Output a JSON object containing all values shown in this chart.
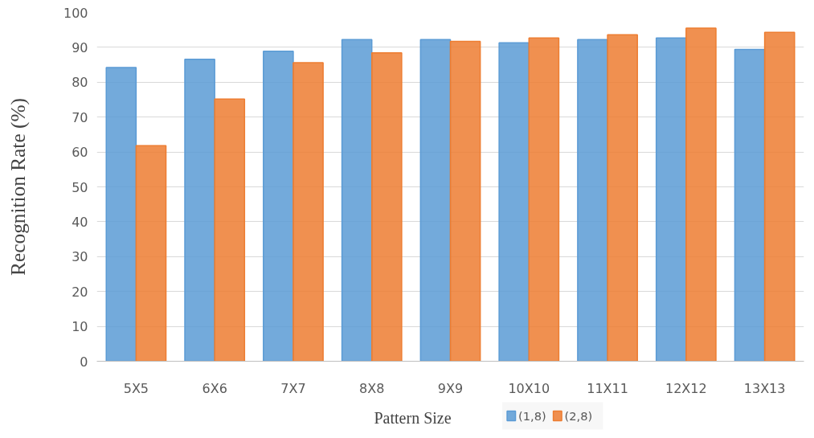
{
  "chart_data": {
    "type": "bar",
    "xlabel": "Pattern Size",
    "ylabel": "Recognition Rate (%)",
    "categories": [
      "5X5",
      "6X6",
      "7X7",
      "8X8",
      "9X9",
      "10X10",
      "11X11",
      "12X12",
      "13X13"
    ],
    "series": [
      {
        "name": "(1,8)",
        "color": "#5b9bd5",
        "values": [
          84.2,
          86.6,
          88.9,
          92.2,
          92.2,
          91.3,
          92.2,
          92.7,
          89.4
        ]
      },
      {
        "name": "(2,8)",
        "color": "#ed7d31",
        "values": [
          61.8,
          75.2,
          85.6,
          88.4,
          91.7,
          92.7,
          93.6,
          95.5,
          94.3
        ]
      }
    ],
    "ylim": [
      0,
      100
    ],
    "yticks": [
      0,
      10,
      20,
      30,
      40,
      50,
      60,
      70,
      80,
      90,
      100
    ],
    "grid": "y",
    "legend": "bottom"
  }
}
